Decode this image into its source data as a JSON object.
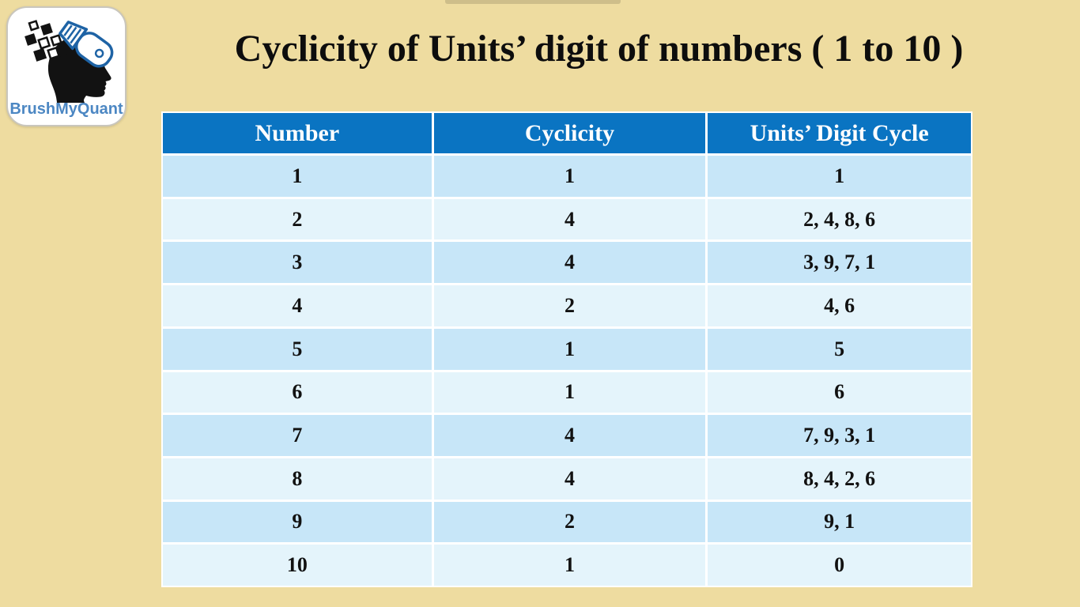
{
  "page": {
    "background_color": "#EEDCA0"
  },
  "logo": {
    "brand": "BrushMyQuant",
    "text_color": "#4C87C3",
    "brush_color": "#1E63A5",
    "head_color": "#121212"
  },
  "title": {
    "text": "Cyclicity of Units’ digit of numbers ( 1 to 10 )"
  },
  "table": {
    "header_bg": "#0A74C2",
    "row_dark_bg": "#C7E6F8",
    "row_light_bg": "#E4F4FB",
    "columns": [
      "Number",
      "Cyclicity",
      "Units’ Digit Cycle"
    ],
    "rows": [
      [
        "1",
        "1",
        "1"
      ],
      [
        "2",
        "4",
        "2, 4, 8, 6"
      ],
      [
        "3",
        "4",
        "3, 9, 7, 1"
      ],
      [
        "4",
        "2",
        "4, 6"
      ],
      [
        "5",
        "1",
        "5"
      ],
      [
        "6",
        "1",
        "6"
      ],
      [
        "7",
        "4",
        "7, 9, 3, 1"
      ],
      [
        "8",
        "4",
        "8, 4, 2, 6"
      ],
      [
        "9",
        "2",
        "9, 1"
      ],
      [
        "10",
        "1",
        "0"
      ]
    ]
  }
}
